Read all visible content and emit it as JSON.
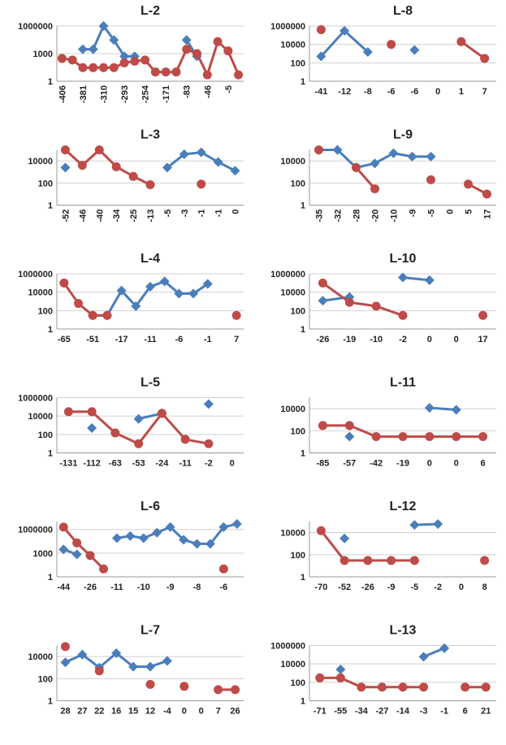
{
  "chart_data": [
    {
      "type": "line",
      "title": "L-2",
      "log_scale": true,
      "grid": true,
      "ylim": [
        1,
        1000000
      ],
      "yticks": [
        1,
        1000,
        1000000
      ],
      "categories": [
        "-406",
        null,
        "-381",
        null,
        "-310",
        null,
        "-293",
        null,
        "-254",
        null,
        "-171",
        null,
        "-83",
        null,
        "-46",
        null,
        "-5",
        null
      ],
      "series": [
        {
          "color": "#4a7ebb",
          "values": [
            null,
            null,
            3000,
            3000,
            1000000,
            30000,
            500,
            500,
            null,
            null,
            null,
            null,
            30000,
            500,
            null,
            null,
            null,
            null
          ]
        },
        {
          "color": "#be4b48",
          "values": [
            300,
            200,
            30,
            30,
            30,
            30,
            100,
            150,
            200,
            10,
            10,
            10,
            3000,
            1000,
            5,
            20000,
            2000,
            5
          ]
        }
      ]
    },
    {
      "type": "line",
      "title": "L-8",
      "log_scale": true,
      "grid": true,
      "ylim": [
        1,
        1000000
      ],
      "yticks": [
        1,
        100,
        10000,
        1000000
      ],
      "categories": [
        "-41",
        "-12",
        "-8",
        "-6",
        "-6",
        "0",
        "1",
        "7"
      ],
      "series": [
        {
          "color": "#4a7ebb",
          "values": [
            500,
            300000,
            1500,
            null,
            2500,
            null,
            null,
            null
          ]
        },
        {
          "color": "#be4b48",
          "values": [
            400000,
            null,
            null,
            10000,
            null,
            null,
            20000,
            300
          ]
        }
      ]
    },
    {
      "type": "line",
      "title": "L-3",
      "log_scale": true,
      "grid": true,
      "ylim": [
        1,
        100000
      ],
      "yticks": [
        1,
        100,
        10000
      ],
      "categories": [
        "-52",
        "-46",
        "-40",
        "-34",
        "-25",
        "-13",
        "-5",
        "-3",
        "-1",
        "-1",
        "0"
      ],
      "series": [
        {
          "color": "#4a7ebb",
          "values": [
            2500,
            null,
            null,
            null,
            null,
            null,
            2500,
            40000,
            60000,
            8000,
            1300
          ]
        },
        {
          "color": "#be4b48",
          "values": [
            100000,
            4000,
            100000,
            3000,
            400,
            70,
            null,
            null,
            80,
            null,
            null
          ]
        }
      ]
    },
    {
      "type": "line",
      "title": "L-9",
      "log_scale": true,
      "grid": true,
      "ylim": [
        1,
        100000
      ],
      "yticks": [
        1,
        100,
        10000
      ],
      "categories": [
        "-35",
        "-32",
        "-28",
        "-20",
        "-10",
        "-9",
        "-5",
        "0",
        "5",
        "17"
      ],
      "series": [
        {
          "color": "#4a7ebb",
          "values": [
            100000,
            100000,
            2500,
            6000,
            50000,
            25000,
            25000,
            null,
            null,
            null
          ]
        },
        {
          "color": "#be4b48",
          "values": [
            100000,
            null,
            2500,
            30,
            null,
            null,
            200,
            null,
            80,
            10
          ]
        }
      ]
    },
    {
      "type": "line",
      "title": "L-4",
      "log_scale": true,
      "grid": true,
      "ylim": [
        1,
        1000000
      ],
      "yticks": [
        1,
        100,
        10000,
        1000000
      ],
      "categories": [
        "-65",
        null,
        "-51",
        null,
        "-17",
        null,
        "-11",
        null,
        "-6",
        null,
        "-1",
        null,
        "7"
      ],
      "series": [
        {
          "color": "#4a7ebb",
          "values": [
            null,
            null,
            30,
            30,
            15000,
            300,
            40000,
            150000,
            7000,
            7000,
            80000,
            null,
            null
          ]
        },
        {
          "color": "#be4b48",
          "values": [
            100000,
            600,
            30,
            30,
            null,
            null,
            null,
            null,
            null,
            null,
            null,
            null,
            30
          ]
        }
      ]
    },
    {
      "type": "line",
      "title": "L-10",
      "log_scale": true,
      "grid": true,
      "ylim": [
        1,
        1000000
      ],
      "yticks": [
        1,
        100,
        10000,
        1000000
      ],
      "categories": [
        "-26",
        "-19",
        "-10",
        "-2",
        "0",
        "0",
        "17"
      ],
      "series": [
        {
          "color": "#4a7ebb",
          "values": [
            1200,
            3000,
            null,
            400000,
            200000,
            null,
            null
          ]
        },
        {
          "color": "#be4b48",
          "values": [
            100000,
            800,
            300,
            30,
            null,
            null,
            30
          ]
        }
      ]
    },
    {
      "type": "line",
      "title": "L-5",
      "log_scale": true,
      "grid": true,
      "ylim": [
        1,
        1000000
      ],
      "yticks": [
        1,
        100,
        10000,
        1000000
      ],
      "categories": [
        "-131",
        "-112",
        "-63",
        "-53",
        "-24",
        "-11",
        "-2",
        "0"
      ],
      "series": [
        {
          "color": "#4a7ebb",
          "values": [
            null,
            500,
            null,
            5000,
            20000,
            null,
            200000,
            null
          ]
        },
        {
          "color": "#be4b48",
          "values": [
            30000,
            30000,
            150,
            10,
            20000,
            30,
            10,
            null
          ]
        }
      ]
    },
    {
      "type": "line",
      "title": "L-11",
      "log_scale": true,
      "grid": true,
      "ylim": [
        1,
        100000
      ],
      "yticks": [
        1,
        100,
        10000
      ],
      "categories": [
        "-85",
        "-57",
        "-42",
        "-19",
        "0",
        "0",
        "6"
      ],
      "series": [
        {
          "color": "#4a7ebb",
          "values": [
            null,
            30,
            null,
            null,
            12000,
            8000,
            null
          ]
        },
        {
          "color": "#be4b48",
          "values": [
            300,
            300,
            30,
            30,
            30,
            30,
            30
          ]
        }
      ]
    },
    {
      "type": "line",
      "title": "L-6",
      "log_scale": true,
      "grid": true,
      "ylim": [
        1,
        10000000
      ],
      "yticks": [
        1,
        1000,
        1000000
      ],
      "categories": [
        "-44",
        null,
        "-26",
        null,
        "-11",
        null,
        "-10",
        null,
        "-9",
        null,
        "-8",
        null,
        "-6",
        null
      ],
      "series": [
        {
          "color": "#4a7ebb",
          "values": [
            3000,
            700,
            null,
            null,
            80000,
            150000,
            80000,
            400000,
            2000000,
            50000,
            15000,
            15000,
            2000000,
            5000000
          ]
        },
        {
          "color": "#be4b48",
          "values": [
            2000000,
            20000,
            500,
            10,
            null,
            null,
            null,
            null,
            null,
            null,
            null,
            null,
            10,
            null
          ]
        }
      ]
    },
    {
      "type": "line",
      "title": "L-12",
      "log_scale": true,
      "grid": true,
      "ylim": [
        1,
        100000
      ],
      "yticks": [
        1,
        100,
        10000
      ],
      "categories": [
        "-70",
        "-52",
        "-26",
        "-9",
        "-5",
        "-2",
        "0",
        "8"
      ],
      "series": [
        {
          "color": "#4a7ebb",
          "values": [
            null,
            3000,
            null,
            null,
            50000,
            60000,
            null,
            null
          ]
        },
        {
          "color": "#be4b48",
          "values": [
            15000,
            30,
            30,
            30,
            30,
            null,
            null,
            30
          ]
        }
      ]
    },
    {
      "type": "line",
      "title": "L-7",
      "log_scale": true,
      "grid": true,
      "ylim": [
        1,
        100000
      ],
      "yticks": [
        1,
        100,
        10000
      ],
      "categories": [
        "28",
        "27",
        "22",
        "16",
        "15",
        "12",
        "-4",
        "0",
        "0",
        "7",
        "26"
      ],
      "series": [
        {
          "color": "#4a7ebb",
          "values": [
            3000,
            15000,
            1000,
            20000,
            1200,
            1200,
            4000,
            null,
            null,
            null,
            null
          ]
        },
        {
          "color": "#be4b48",
          "values": [
            80000,
            null,
            500,
            null,
            null,
            30,
            null,
            20,
            null,
            10,
            10
          ]
        }
      ]
    },
    {
      "type": "line",
      "title": "L-13",
      "log_scale": true,
      "grid": true,
      "ylim": [
        1,
        1000000
      ],
      "yticks": [
        1,
        100,
        10000,
        1000000
      ],
      "categories": [
        "-71",
        "-55",
        "-34",
        "-27",
        "-14",
        "-3",
        "-1",
        "6",
        "21"
      ],
      "series": [
        {
          "color": "#4a7ebb",
          "values": [
            null,
            2500,
            null,
            null,
            null,
            60000,
            500000,
            null,
            null
          ]
        },
        {
          "color": "#be4b48",
          "values": [
            300,
            300,
            30,
            30,
            30,
            30,
            null,
            30,
            30
          ]
        }
      ]
    }
  ]
}
